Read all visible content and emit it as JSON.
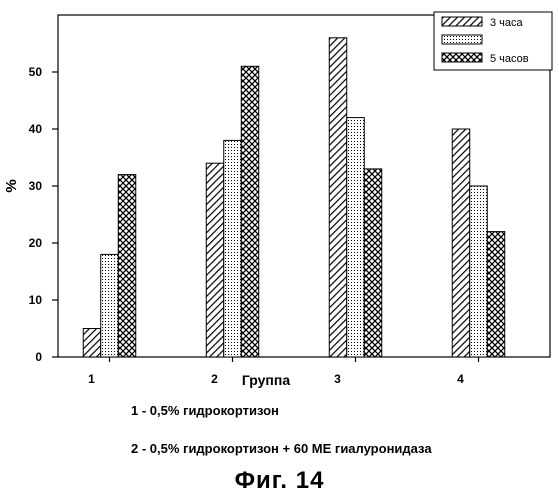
{
  "chart_data": {
    "type": "bar",
    "categories": [
      "1",
      "2",
      "3",
      "4"
    ],
    "series": [
      {
        "name": "3 часа",
        "values": [
          5,
          34,
          56,
          40
        ]
      },
      {
        "name": "",
        "values": [
          18,
          38,
          42,
          30
        ]
      },
      {
        "name": "5 часов",
        "values": [
          32,
          51,
          33,
          22
        ]
      }
    ],
    "xlabel": "Группа",
    "ylabel": "%",
    "ylim": [
      0,
      60
    ],
    "yticks": [
      0,
      10,
      20,
      30,
      40,
      50
    ],
    "grid": false,
    "legend_position": "top-right",
    "patterns": [
      "diagonal-hatch",
      "dotted",
      "crosshatch"
    ]
  },
  "notes": [
    "1 - 0,5% гидрокортизон",
    "2 - 0,5% гидрокортизон + 60 МЕ гиалуронидаза"
  ],
  "caption": "Фиг. 14"
}
